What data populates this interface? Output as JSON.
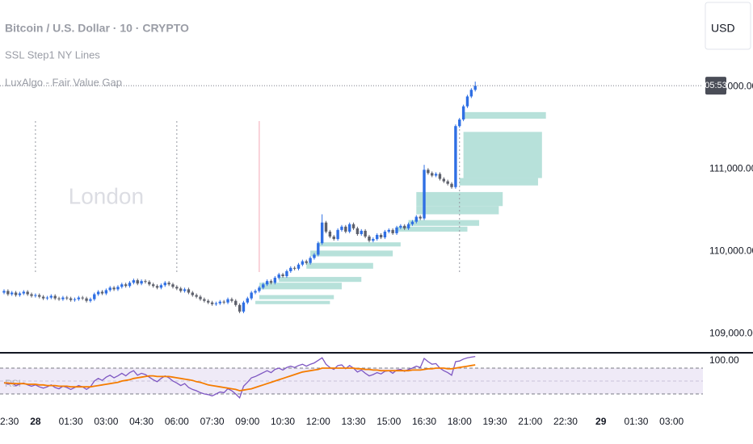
{
  "header": {
    "currency": "USD"
  },
  "chart_data": [
    {
      "type": "candlestick",
      "title": "Bitcoin / U.S. Dollar · 10 · CRYPTO",
      "indicators": [
        "SSL Step1 NY Lines",
        "LuxAlgo - Fair Value Gap"
      ],
      "x": [
        "22:40",
        "22:50",
        "23:00",
        "23:10",
        "23:20",
        "23:30",
        "23:40",
        "23:50",
        "00:00",
        "00:10",
        "00:20",
        "00:30",
        "00:40",
        "00:50",
        "01:00",
        "01:10",
        "01:20",
        "01:30",
        "01:40",
        "01:50",
        "02:00",
        "02:10",
        "02:20",
        "02:30",
        "02:40",
        "02:50",
        "03:00",
        "03:10",
        "03:20",
        "03:30",
        "03:40",
        "03:50",
        "04:00",
        "04:10",
        "04:20",
        "04:30",
        "04:40",
        "04:50",
        "05:00",
        "05:10",
        "05:20",
        "05:30",
        "05:40",
        "05:50",
        "06:00",
        "06:10",
        "06:20",
        "06:30",
        "06:40",
        "06:50",
        "07:00",
        "07:10",
        "07:20",
        "07:30",
        "07:40",
        "07:50",
        "08:00",
        "08:10",
        "08:20",
        "08:30",
        "08:40",
        "08:50",
        "09:00",
        "09:10",
        "09:20",
        "09:30",
        "09:40",
        "09:50",
        "10:00",
        "10:10",
        "10:20",
        "10:30",
        "10:40",
        "10:50",
        "11:00",
        "11:10",
        "11:20",
        "11:30",
        "11:40",
        "11:50",
        "12:00",
        "12:10",
        "12:20",
        "12:30",
        "12:40",
        "12:50",
        "13:00",
        "13:10",
        "13:20",
        "13:30",
        "13:40",
        "13:50",
        "14:00",
        "14:10",
        "14:20",
        "14:30",
        "14:40",
        "14:50",
        "15:00",
        "15:10",
        "15:20",
        "15:30",
        "15:40",
        "15:50",
        "16:00",
        "16:10",
        "16:20",
        "16:30",
        "16:40",
        "16:50",
        "17:00",
        "17:10",
        "17:20",
        "17:30",
        "17:40",
        "17:50",
        "18:00",
        "18:10",
        "18:20",
        "18:30",
        "18:40"
      ],
      "open": [
        109500,
        109520,
        109480,
        109500,
        109470,
        109490,
        109510,
        109480,
        109460,
        109470,
        109450,
        109430,
        109440,
        109460,
        109430,
        109420,
        109440,
        109430,
        109410,
        109420,
        109440,
        109430,
        109400,
        109420,
        109480,
        109510,
        109490,
        109530,
        109560,
        109540,
        109570,
        109600,
        109580,
        109620,
        109650,
        109610,
        109640,
        109630,
        109600,
        109580,
        109560,
        109590,
        109620,
        109600,
        109570,
        109550,
        109520,
        109540,
        109500,
        109470,
        109450,
        109420,
        109400,
        109380,
        109360,
        109370,
        109390,
        109380,
        109420,
        109400,
        109350,
        109270,
        109380,
        109430,
        109500,
        109520,
        109560,
        109600,
        109640,
        109620,
        109680,
        109720,
        109700,
        109760,
        109800,
        109790,
        109840,
        109880,
        109860,
        109920,
        109960,
        110100,
        110350,
        110240,
        110180,
        110150,
        110260,
        110300,
        110240,
        110330,
        110280,
        110210,
        110250,
        110180,
        110130,
        110150,
        110200,
        110170,
        110240,
        110260,
        110220,
        110290,
        110310,
        110280,
        110330,
        110360,
        110420,
        110400,
        110990,
        110950,
        110920,
        110940,
        110880,
        110850,
        110820,
        110780,
        111520,
        111600,
        111760,
        111880,
        111960
      ],
      "high": [
        109540,
        109540,
        109520,
        109520,
        109510,
        109530,
        109530,
        109500,
        109490,
        109490,
        109470,
        109460,
        109480,
        109480,
        109450,
        109460,
        109460,
        109450,
        109440,
        109460,
        109460,
        109450,
        109440,
        109500,
        109530,
        109530,
        109550,
        109580,
        109580,
        109590,
        109620,
        109620,
        109640,
        109670,
        109670,
        109660,
        109660,
        109650,
        109620,
        109600,
        109610,
        109640,
        109640,
        109620,
        109590,
        109570,
        109560,
        109560,
        109520,
        109490,
        109470,
        109440,
        109420,
        109400,
        109390,
        109410,
        109410,
        109440,
        109440,
        109420,
        109370,
        109400,
        109450,
        109520,
        109540,
        109580,
        109620,
        109660,
        109660,
        109700,
        109740,
        109740,
        109780,
        109820,
        109820,
        109860,
        109900,
        109900,
        109940,
        109980,
        110120,
        110450,
        110370,
        110260,
        110200,
        110280,
        110320,
        110320,
        110350,
        110350,
        110300,
        110270,
        110270,
        110200,
        110170,
        110220,
        110220,
        110260,
        110280,
        110280,
        110310,
        110330,
        110330,
        110350,
        110380,
        110440,
        110440,
        111050,
        111010,
        110970,
        110960,
        110960,
        110900,
        110870,
        110840,
        111540,
        111620,
        111780,
        111900,
        111980,
        112060
      ],
      "low": [
        109480,
        109460,
        109460,
        109450,
        109450,
        109470,
        109460,
        109440,
        109440,
        109430,
        109410,
        109410,
        109420,
        109410,
        109400,
        109400,
        109410,
        109390,
        109390,
        109400,
        109410,
        109380,
        109380,
        109400,
        109460,
        109470,
        109470,
        109510,
        109520,
        109520,
        109550,
        109560,
        109560,
        109600,
        109590,
        109590,
        109610,
        109580,
        109560,
        109540,
        109540,
        109570,
        109580,
        109550,
        109530,
        109500,
        109500,
        109480,
        109450,
        109430,
        109400,
        109380,
        109360,
        109340,
        109340,
        109350,
        109360,
        109360,
        109380,
        109330,
        109250,
        109250,
        109360,
        109410,
        109480,
        109500,
        109540,
        109580,
        109600,
        109600,
        109660,
        109680,
        109680,
        109740,
        109770,
        109770,
        109820,
        109840,
        109840,
        109900,
        109940,
        110080,
        110220,
        110160,
        110130,
        110130,
        110240,
        110220,
        110220,
        110260,
        110190,
        110190,
        110160,
        110110,
        110110,
        110130,
        110150,
        110150,
        110220,
        110200,
        110200,
        110270,
        110260,
        110260,
        110310,
        110340,
        110380,
        110380,
        110930,
        110900,
        110900,
        110860,
        110830,
        110800,
        110760,
        110760,
        111500,
        111580,
        111740,
        111860,
        111940
      ],
      "close": [
        109520,
        109480,
        109500,
        109470,
        109490,
        109510,
        109480,
        109460,
        109470,
        109450,
        109430,
        109440,
        109460,
        109430,
        109420,
        109440,
        109430,
        109410,
        109420,
        109440,
        109430,
        109400,
        109420,
        109480,
        109510,
        109490,
        109530,
        109560,
        109540,
        109570,
        109600,
        109580,
        109620,
        109650,
        109610,
        109640,
        109630,
        109600,
        109580,
        109560,
        109590,
        109620,
        109600,
        109570,
        109550,
        109520,
        109540,
        109500,
        109470,
        109450,
        109420,
        109400,
        109380,
        109360,
        109370,
        109390,
        109380,
        109420,
        109400,
        109350,
        109270,
        109380,
        109430,
        109500,
        109520,
        109560,
        109600,
        109640,
        109620,
        109680,
        109720,
        109700,
        109760,
        109800,
        109790,
        109840,
        109880,
        109860,
        109920,
        109960,
        110100,
        110350,
        110240,
        110180,
        110150,
        110260,
        110300,
        110240,
        110330,
        110280,
        110210,
        110250,
        110180,
        110130,
        110150,
        110200,
        110170,
        110240,
        110260,
        110220,
        110290,
        110310,
        110280,
        110330,
        110360,
        110420,
        110400,
        110990,
        110950,
        110920,
        110940,
        110880,
        110850,
        110820,
        110780,
        111520,
        111600,
        111760,
        111880,
        111960,
        112010
      ],
      "up_color": "#2f6fe4",
      "down_color": "#5d606b",
      "ylim": [
        108770,
        113050
      ],
      "yticks": [
        {
          "value": 109000,
          "label": "109,000.00"
        },
        {
          "value": 110000,
          "label": "110,000.00"
        },
        {
          "value": 111000,
          "label": "111,000.00"
        },
        {
          "value": 112000,
          "label": "112,000.00"
        }
      ],
      "xticks": [
        {
          "value": "22:30",
          "label": "2:30"
        },
        {
          "value": "00:00",
          "label": "28"
        },
        "01:30",
        "03:00",
        "04:30",
        "06:00",
        "07:30",
        "09:00",
        "10:30",
        "12:00",
        "13:30",
        "15:00",
        "16:30",
        "18:00",
        "19:30",
        "21:00",
        "22:30",
        {
          "value": "00:00",
          "label": "29"
        },
        "01:30",
        "03:00"
      ],
      "countdown": "05:53",
      "fvg_color": "#b7e1da",
      "fvg_zones": [
        {
          "start": "18:10",
          "end": "21:40",
          "top": 111690,
          "bottom": 111610
        },
        {
          "start": "18:10",
          "end": "21:30",
          "top": 111450,
          "bottom": 110890
        },
        {
          "start": "18:00",
          "end": "21:20",
          "top": 110890,
          "bottom": 110800
        },
        {
          "start": "16:10",
          "end": "19:50",
          "top": 110720,
          "bottom": 110550
        },
        {
          "start": "16:10",
          "end": "19:40",
          "top": 110550,
          "bottom": 110450
        },
        {
          "start": "15:50",
          "end": "18:50",
          "top": 110380,
          "bottom": 110310
        },
        {
          "start": "15:20",
          "end": "18:20",
          "top": 110300,
          "bottom": 110240
        },
        {
          "start": "12:00",
          "end": "15:30",
          "top": 110110,
          "bottom": 110060
        },
        {
          "start": "11:40",
          "end": "15:10",
          "top": 110010,
          "bottom": 109940
        },
        {
          "start": "11:30",
          "end": "14:20",
          "top": 109860,
          "bottom": 109790
        },
        {
          "start": "10:20",
          "end": "13:50",
          "top": 109690,
          "bottom": 109630
        },
        {
          "start": "09:30",
          "end": "13:00",
          "top": 109620,
          "bottom": 109540
        },
        {
          "start": "09:30",
          "end": "12:40",
          "top": 109470,
          "bottom": 109420
        },
        {
          "start": "09:20",
          "end": "12:30",
          "top": 109400,
          "bottom": 109360
        }
      ],
      "session_lines": [
        {
          "time": "00:00",
          "color": "#9598a1"
        },
        {
          "time": "06:00",
          "color": "#9598a1"
        },
        {
          "time": "09:30",
          "color": "#f4a7b4"
        },
        {
          "time": "18:00",
          "color": "#9598a1"
        }
      ],
      "session_label": "London"
    },
    {
      "type": "line",
      "title": "RSI",
      "series": [
        {
          "color": "#7e57c2",
          "values": [
            48,
            45,
            47,
            43,
            45,
            47,
            44,
            42,
            44,
            41,
            39,
            41,
            44,
            40,
            38,
            42,
            40,
            37,
            40,
            43,
            41,
            37,
            41,
            50,
            54,
            51,
            56,
            59,
            55,
            58,
            62,
            58,
            63,
            66,
            59,
            62,
            60,
            56,
            52,
            49,
            54,
            58,
            55,
            50,
            47,
            43,
            46,
            40,
            37,
            35,
            32,
            30,
            29,
            27,
            30,
            33,
            32,
            38,
            35,
            30,
            24,
            42,
            48,
            55,
            57,
            60,
            63,
            66,
            63,
            68,
            70,
            67,
            71,
            73,
            71,
            74,
            76,
            73,
            76,
            78,
            82,
            86,
            76,
            71,
            68,
            74,
            75,
            69,
            74,
            70,
            64,
            67,
            62,
            58,
            60,
            63,
            61,
            65,
            66,
            62,
            67,
            68,
            65,
            68,
            70,
            73,
            71,
            85,
            80,
            76,
            77,
            70,
            66,
            63,
            59,
            80,
            81,
            84,
            86,
            87,
            88
          ]
        },
        {
          "color": "#f57c00",
          "values": [
            47,
            47,
            46,
            46,
            46,
            46,
            45,
            45,
            45,
            44,
            44,
            43,
            43,
            43,
            42,
            42,
            42,
            41,
            41,
            41,
            41,
            41,
            41,
            42,
            43,
            44,
            45,
            46,
            47,
            48,
            50,
            51,
            52,
            54,
            55,
            56,
            57,
            58,
            58,
            57,
            57,
            57,
            57,
            56,
            55,
            54,
            53,
            52,
            51,
            49,
            48,
            46,
            44,
            43,
            42,
            41,
            40,
            39,
            38,
            37,
            35,
            36,
            37,
            38,
            40,
            42,
            44,
            46,
            48,
            50,
            52,
            54,
            56,
            58,
            60,
            62,
            64,
            65,
            66,
            67,
            68,
            70,
            70,
            70,
            70,
            70,
            70,
            70,
            70,
            70,
            69,
            69,
            68,
            68,
            67,
            67,
            66,
            66,
            66,
            66,
            66,
            66,
            66,
            66,
            67,
            67,
            67,
            68,
            69,
            69,
            70,
            70,
            70,
            69,
            69,
            70,
            71,
            72,
            73,
            74,
            75
          ]
        }
      ],
      "ylim": [
        2.5,
        92.5
      ],
      "yticks": [
        {
          "value": 100,
          "label": "100.00"
        }
      ],
      "levels": [
        70,
        50,
        30
      ],
      "band_color": "#efeaf7"
    }
  ]
}
